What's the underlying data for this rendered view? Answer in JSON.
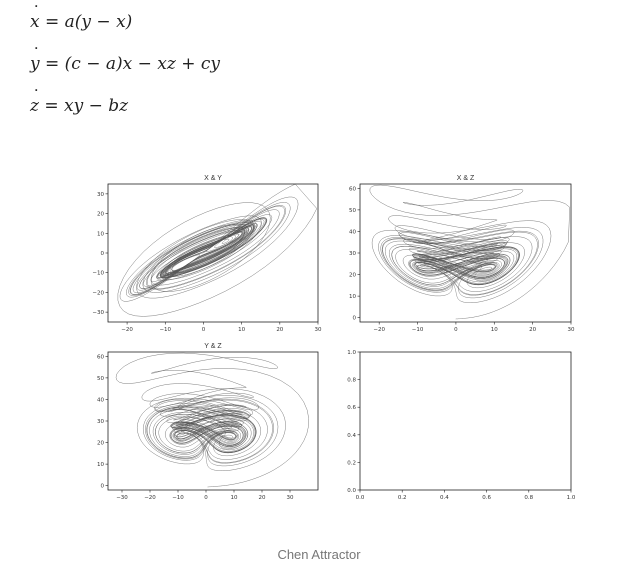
{
  "equations": {
    "eq1": {
      "lhs": "x",
      "rhs": " = a(y − x)"
    },
    "eq2": {
      "lhs": "y",
      "rhs": " = (c − a)x − xz + cy"
    },
    "eq3": {
      "lhs": "z",
      "rhs": " = xy − bz"
    }
  },
  "caption": "Chen Attractor",
  "colors": {
    "trace": "#555555",
    "axis": "#222222",
    "text": "#333333"
  },
  "chart_data": [
    {
      "type": "line",
      "title": "X & Y",
      "xlim": [
        -25,
        30
      ],
      "ylim": [
        -35,
        35
      ],
      "xticks": [
        -20,
        -10,
        0,
        10,
        20,
        30
      ],
      "yticks": [
        -30,
        -20,
        -10,
        0,
        10,
        20,
        30
      ],
      "series": []
    },
    {
      "type": "line",
      "title": "X & Z",
      "xlim": [
        -25,
        30
      ],
      "ylim": [
        -2,
        62
      ],
      "xticks": [
        -20,
        -10,
        0,
        10,
        20,
        30
      ],
      "yticks": [
        0,
        10,
        20,
        30,
        40,
        50,
        60
      ],
      "series": []
    },
    {
      "type": "line",
      "title": "Y & Z",
      "xlim": [
        -35,
        40
      ],
      "ylim": [
        -2,
        62
      ],
      "xticks": [
        -30,
        -20,
        -10,
        0,
        10,
        20,
        30
      ],
      "yticks": [
        0,
        10,
        20,
        30,
        40,
        50,
        60
      ],
      "series": []
    },
    {
      "type": "line",
      "title": "",
      "xlim": [
        0,
        1
      ],
      "ylim": [
        0,
        1
      ],
      "xticks": [
        "0.0",
        "0.2",
        "0.4",
        "0.6",
        "0.8",
        "1.0"
      ],
      "yticks": [
        "0.0",
        "0.2",
        "0.4",
        "0.6",
        "0.8",
        "1.0"
      ],
      "series": []
    }
  ]
}
